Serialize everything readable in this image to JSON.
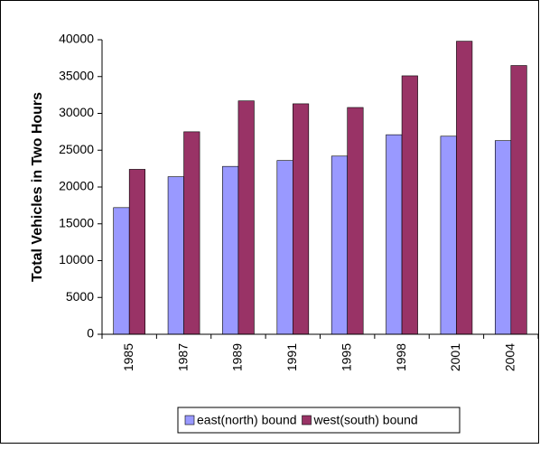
{
  "chart_data": {
    "type": "bar",
    "y_label": "Total Vehicles in Two Hours",
    "categories": [
      "1985",
      "1987",
      "1989",
      "1991",
      "1995",
      "1998",
      "2001",
      "2004"
    ],
    "series": [
      {
        "name": "east(north) bound",
        "color": "#9999ff",
        "values": [
          17200,
          21400,
          22800,
          23600,
          24200,
          27100,
          26900,
          26300
        ]
      },
      {
        "name": "west(south) bound",
        "color": "#993366",
        "values": [
          22400,
          27500,
          31700,
          31300,
          30800,
          35100,
          39800,
          36500
        ]
      }
    ],
    "ylim": [
      0,
      40000
    ],
    "yticks": [
      0,
      5000,
      10000,
      15000,
      20000,
      25000,
      30000,
      35000,
      40000
    ],
    "grid": false,
    "legend": "bottom"
  }
}
